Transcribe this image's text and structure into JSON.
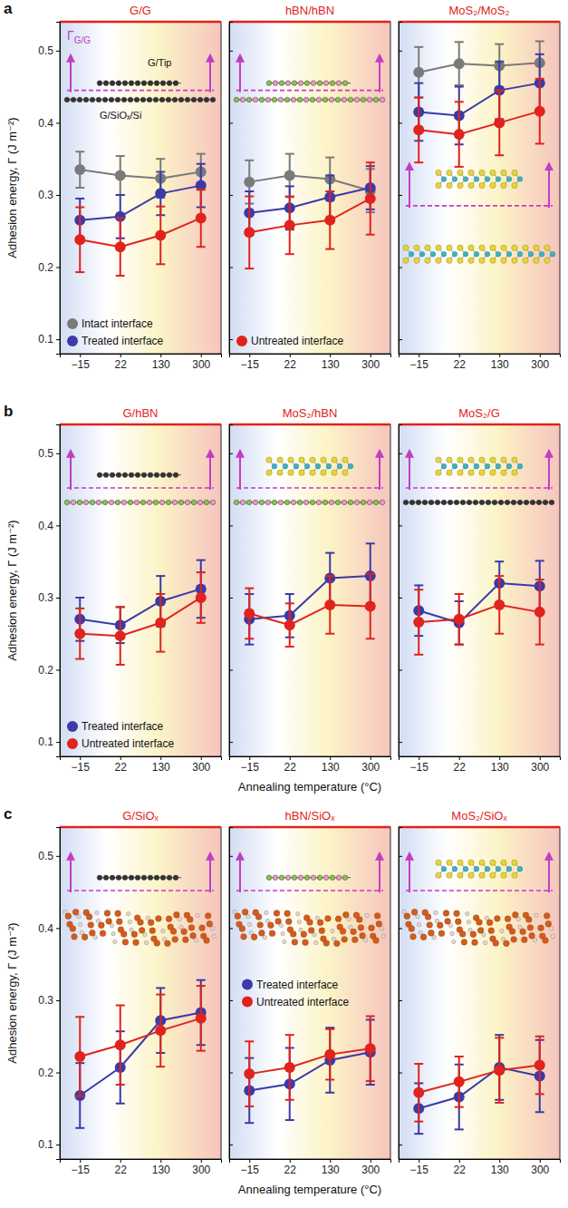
{
  "chart_data": [
    {
      "type": "line",
      "panel": "a",
      "title": "G/G",
      "y_label": "Adhesion energy, Γ (J m⁻²)",
      "categories": [
        "−15",
        "22",
        "130",
        "300"
      ],
      "ylim": [
        0.08,
        0.54
      ],
      "yticks": [
        0.1,
        0.2,
        0.3,
        0.4,
        0.5
      ],
      "tick_labels": true,
      "marker": "circle",
      "legend": "lower left",
      "annotations": [
        {
          "text": "Γ",
          "subscript": "G/G"
        },
        {
          "text": "G/Tip"
        },
        {
          "text": "G/SiOₓ/Si"
        }
      ],
      "series": [
        {
          "name": "Intact interface",
          "color": "#7a7a7a",
          "values": [
            0.335,
            0.327,
            0.323,
            0.332
          ],
          "errors": [
            0.025,
            0.027,
            0.027,
            0.025
          ]
        },
        {
          "name": "Treated interface",
          "color": "#3a3aa8",
          "values": [
            0.265,
            0.27,
            0.302,
            0.313
          ],
          "errors": [
            0.03,
            0.03,
            0.03,
            0.03
          ]
        },
        {
          "color": "#e0231c",
          "values": [
            0.238,
            0.228,
            0.244,
            0.268
          ],
          "errors": [
            0.045,
            0.04,
            0.04,
            0.04
          ]
        }
      ]
    },
    {
      "type": "line",
      "title": "hBN/hBN",
      "categories": [
        "−15",
        "22",
        "130",
        "300"
      ],
      "ylim": [
        0.08,
        0.54
      ],
      "yticks": [
        0.1,
        0.2,
        0.3,
        0.4,
        0.5
      ],
      "tick_labels": "x",
      "marker": "circle",
      "legend": "lower left",
      "series": [
        {
          "color": "#7a7a7a",
          "values": [
            0.318,
            0.327,
            0.322,
            0.306
          ],
          "errors": [
            0.03,
            0.03,
            0.03,
            0.03
          ]
        },
        {
          "color": "#3a3aa8",
          "values": [
            0.275,
            0.282,
            0.297,
            0.31
          ],
          "errors": [
            0.03,
            0.03,
            0.03,
            0.03
          ]
        },
        {
          "name": "Untreated interface",
          "color": "#e0231c",
          "values": [
            0.248,
            0.258,
            0.265,
            0.295
          ],
          "errors": [
            0.05,
            0.04,
            0.04,
            0.05
          ]
        }
      ]
    },
    {
      "type": "line",
      "title": "MoS₂/MoS₂",
      "categories": [
        "−15",
        "22",
        "130",
        "300"
      ],
      "ylim": [
        0.08,
        0.54
      ],
      "yticks": [
        0.1,
        0.2,
        0.3,
        0.4,
        0.5
      ],
      "tick_labels": "x",
      "marker": "circle",
      "series": [
        {
          "color": "#7a7a7a",
          "values": [
            0.47,
            0.482,
            0.479,
            0.483
          ],
          "errors": [
            0.035,
            0.03,
            0.03,
            0.03
          ]
        },
        {
          "color": "#3a3aa8",
          "values": [
            0.415,
            0.41,
            0.445,
            0.455
          ],
          "errors": [
            0.04,
            0.04,
            0.04,
            0.04
          ]
        },
        {
          "color": "#e0231c",
          "values": [
            0.39,
            0.384,
            0.4,
            0.416
          ],
          "errors": [
            0.045,
            0.045,
            0.045,
            0.045
          ]
        }
      ]
    },
    {
      "type": "line",
      "panel": "b",
      "title": "G/hBN",
      "y_label": "Adhesion energy, Γ (J m⁻²)",
      "categories": [
        "−15",
        "22",
        "130",
        "300"
      ],
      "ylim": [
        0.08,
        0.54
      ],
      "yticks": [
        0.1,
        0.2,
        0.3,
        0.4,
        0.5
      ],
      "tick_labels": true,
      "marker": "circle",
      "legend": "lower left",
      "series": [
        {
          "name": "Treated interface",
          "color": "#3a3aa8",
          "values": [
            0.27,
            0.262,
            0.295,
            0.312
          ],
          "errors": [
            0.03,
            0.025,
            0.035,
            0.04
          ]
        },
        {
          "name": "Untreated interface",
          "color": "#e0231c",
          "values": [
            0.25,
            0.247,
            0.265,
            0.3
          ],
          "errors": [
            0.035,
            0.04,
            0.04,
            0.035
          ]
        }
      ]
    },
    {
      "type": "line",
      "title": "MoS₂/hBN",
      "x_label": "Annealing temperature (°C)",
      "categories": [
        "−15",
        "22",
        "130",
        "300"
      ],
      "ylim": [
        0.08,
        0.54
      ],
      "yticks": [
        0.1,
        0.2,
        0.3,
        0.4,
        0.5
      ],
      "tick_labels": "x",
      "marker": "circle",
      "series": [
        {
          "color": "#3a3aa8",
          "values": [
            0.27,
            0.275,
            0.327,
            0.33
          ],
          "errors": [
            0.035,
            0.03,
            0.035,
            0.045
          ]
        },
        {
          "color": "#e0231c",
          "values": [
            0.278,
            0.262,
            0.29,
            0.288
          ],
          "errors": [
            0.035,
            0.03,
            0.04,
            0.045
          ]
        }
      ]
    },
    {
      "type": "line",
      "title": "MoS₂/G",
      "categories": [
        "−15",
        "22",
        "130",
        "300"
      ],
      "ylim": [
        0.08,
        0.54
      ],
      "yticks": [
        0.1,
        0.2,
        0.3,
        0.4,
        0.5
      ],
      "tick_labels": "x",
      "marker": "circle",
      "series": [
        {
          "color": "#3a3aa8",
          "values": [
            0.282,
            0.265,
            0.32,
            0.316
          ],
          "errors": [
            0.035,
            0.03,
            0.03,
            0.035
          ]
        },
        {
          "color": "#e0231c",
          "values": [
            0.266,
            0.27,
            0.29,
            0.28
          ],
          "errors": [
            0.045,
            0.035,
            0.04,
            0.045
          ]
        }
      ]
    },
    {
      "type": "line",
      "panel": "c",
      "title": "G/SiOₓ",
      "y_label": "Adhesion energy, Γ (J m⁻²)",
      "categories": [
        "−15",
        "22",
        "130",
        "300"
      ],
      "ylim": [
        0.08,
        0.54
      ],
      "yticks": [
        0.1,
        0.2,
        0.3,
        0.4,
        0.5
      ],
      "tick_labels": true,
      "marker": "circle",
      "series": [
        {
          "color": "#3a3aa8",
          "values": [
            0.168,
            0.207,
            0.272,
            0.283
          ],
          "errors": [
            0.045,
            0.05,
            0.045,
            0.045
          ]
        },
        {
          "color": "#e0231c",
          "values": [
            0.222,
            0.238,
            0.258,
            0.275
          ],
          "errors": [
            0.055,
            0.055,
            0.05,
            0.045
          ]
        }
      ]
    },
    {
      "type": "line",
      "title": "hBN/SiOₓ",
      "x_label": "Annealing temperature (°C)",
      "categories": [
        "−15",
        "22",
        "130",
        "300"
      ],
      "ylim": [
        0.08,
        0.54
      ],
      "yticks": [
        0.1,
        0.2,
        0.3,
        0.4,
        0.5
      ],
      "tick_labels": "x",
      "marker": "circle",
      "legend": "center",
      "series": [
        {
          "name": "Treated interface",
          "color": "#3a3aa8",
          "values": [
            0.175,
            0.184,
            0.217,
            0.228
          ],
          "errors": [
            0.045,
            0.05,
            0.045,
            0.045
          ]
        },
        {
          "name": "Untreated interface",
          "color": "#e0231c",
          "values": [
            0.198,
            0.207,
            0.225,
            0.233
          ],
          "errors": [
            0.045,
            0.045,
            0.035,
            0.045
          ]
        }
      ]
    },
    {
      "type": "line",
      "title": "MoS₂/SiOₓ",
      "categories": [
        "−15",
        "22",
        "130",
        "300"
      ],
      "ylim": [
        0.08,
        0.54
      ],
      "yticks": [
        0.1,
        0.2,
        0.3,
        0.4,
        0.5
      ],
      "tick_labels": "x",
      "marker": "circle",
      "series": [
        {
          "color": "#3a3aa8",
          "values": [
            0.15,
            0.166,
            0.207,
            0.195
          ],
          "errors": [
            0.035,
            0.045,
            0.045,
            0.05
          ]
        },
        {
          "color": "#e0231c",
          "values": [
            0.172,
            0.187,
            0.203,
            0.21
          ],
          "errors": [
            0.04,
            0.035,
            0.045,
            0.04
          ]
        }
      ]
    }
  ]
}
